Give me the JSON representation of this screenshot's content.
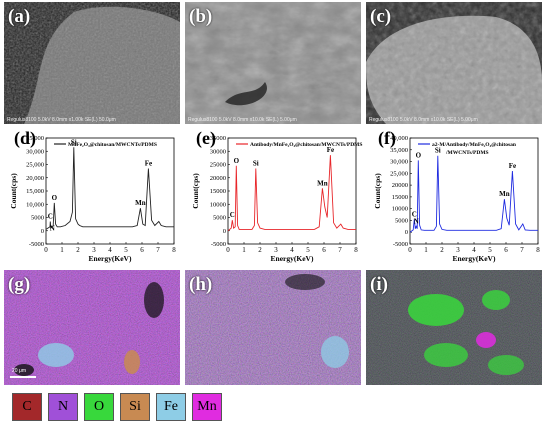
{
  "panels_top": [
    {
      "label": "(a)",
      "info": "Regulus8100 5.0kV 8.0mm x1.00k SE(L)  50.0μm"
    },
    {
      "label": "(b)",
      "info": "Regulus8100 5.0kV 8.0mm x10.0k SE(L)  5.00μm"
    },
    {
      "label": "(c)",
      "info": "Regulus8100 5.0kV 8.0mm x10.0k SE(L)  5.00μm"
    }
  ],
  "chart_data": [
    {
      "type": "line",
      "panel_label": "(d)",
      "legend": "MnFe₂O₄@chitosan/MWCNTs/PDMS",
      "legend_line2": "",
      "color": "#222222",
      "xlabel": "Energy(KeV)",
      "ylabel": "Count(cps)",
      "xlim": [
        0,
        8
      ],
      "ylim": [
        -5000,
        35000
      ],
      "xticks": [
        "0",
        "1",
        "2",
        "3",
        "4",
        "5",
        "6",
        "7",
        "8"
      ],
      "yticks": [
        "-5000",
        "0",
        "5000",
        "10,000",
        "15,000",
        "20,000",
        "25,000",
        "30,000",
        "35,000"
      ],
      "peaks": [
        {
          "name": "C",
          "x": 0.27,
          "y": 3500
        },
        {
          "name": "N",
          "x": 0.39,
          "y": -1000
        },
        {
          "name": "O",
          "x": 0.52,
          "y": 10500
        },
        {
          "name": "Si",
          "x": 1.74,
          "y": 31500
        },
        {
          "name": "Mn",
          "x": 5.9,
          "y": 8500
        },
        {
          "name": "Fe",
          "x": 6.4,
          "y": 23500
        }
      ],
      "series": [
        {
          "x": [
            0,
            0.25,
            0.27,
            0.3,
            0.39,
            0.45,
            0.52,
            0.6,
            0.7,
            0.9,
            1.2,
            1.5,
            1.65,
            1.74,
            1.85,
            2.0,
            2.1,
            2.3,
            2.6,
            3.0,
            3.5,
            4.0,
            4.5,
            5.0,
            5.4,
            5.7,
            5.9,
            6.05,
            6.2,
            6.4,
            6.6,
            6.8,
            7.05,
            7.2,
            7.5,
            8.0
          ],
          "y": [
            500,
            1500,
            3500,
            1000,
            1500,
            2000,
            10500,
            2500,
            1500,
            1500,
            2000,
            3500,
            7000,
            31500,
            4500,
            2500,
            2000,
            1500,
            1500,
            1500,
            1500,
            1500,
            1500,
            1500,
            1500,
            2000,
            8500,
            2500,
            2000,
            23500,
            4000,
            2000,
            3500,
            2000,
            1500,
            1500
          ]
        }
      ]
    },
    {
      "type": "line",
      "panel_label": "(e)",
      "legend": "Antibody/MnFe₂O₄@chitosan/MWCNTs/PDMS",
      "legend_line2": "",
      "color": "#e8262a",
      "xlabel": "Energy(KeV)",
      "ylabel": "Count(cps)",
      "xlim": [
        0,
        8
      ],
      "ylim": [
        -5000,
        35000
      ],
      "xticks": [
        "0",
        "1",
        "2",
        "3",
        "4",
        "5",
        "6",
        "7",
        "8"
      ],
      "yticks": [
        "-5000",
        "0",
        "5000",
        "10000",
        "15000",
        "20000",
        "25000",
        "30000",
        "35000"
      ],
      "peaks": [
        {
          "name": "C",
          "x": 0.27,
          "y": 4000
        },
        {
          "name": "O",
          "x": 0.52,
          "y": 24500
        },
        {
          "name": "Si",
          "x": 1.74,
          "y": 23500
        },
        {
          "name": "Mn",
          "x": 5.9,
          "y": 16000
        },
        {
          "name": "Fe",
          "x": 6.4,
          "y": 28500
        }
      ],
      "series": [
        {
          "x": [
            0,
            0.2,
            0.27,
            0.35,
            0.45,
            0.52,
            0.6,
            0.7,
            0.9,
            1.2,
            1.5,
            1.65,
            1.74,
            1.85,
            2.0,
            2.3,
            2.6,
            3.0,
            3.5,
            4.0,
            4.5,
            5.0,
            5.4,
            5.7,
            5.9,
            6.05,
            6.2,
            6.4,
            6.6,
            6.8,
            7.05,
            7.2,
            7.5,
            8.0
          ],
          "y": [
            0,
            1000,
            4000,
            1000,
            1500,
            24500,
            2000,
            500,
            500,
            500,
            500,
            2000,
            23500,
            3000,
            1000,
            500,
            500,
            500,
            500,
            500,
            500,
            500,
            500,
            1500,
            16000,
            9000,
            5000,
            28500,
            3000,
            1000,
            2500,
            1000,
            500,
            500
          ]
        }
      ]
    },
    {
      "type": "line",
      "panel_label": "(f)",
      "legend": "a2-M/Antibody/MnFe₂O₄@chitosan",
      "legend_line2": "/MWCNTs/PDMS",
      "color": "#1f2be0",
      "xlabel": "Energy(KeV)",
      "ylabel": "Count(cps)",
      "xlim": [
        0,
        8
      ],
      "ylim": [
        -5000,
        40000
      ],
      "xticks": [
        "0",
        "1",
        "2",
        "3",
        "4",
        "5",
        "6",
        "7",
        "8"
      ],
      "yticks": [
        "-5000",
        "0",
        "5000",
        "10000",
        "15000",
        "20000",
        "25,000",
        "30,000",
        "35,000",
        "40,000"
      ],
      "peaks": [
        {
          "name": "C",
          "x": 0.27,
          "y": 5500
        },
        {
          "name": "N",
          "x": 0.39,
          "y": 2500
        },
        {
          "name": "O",
          "x": 0.52,
          "y": 30500
        },
        {
          "name": "Si",
          "x": 1.74,
          "y": 32500
        },
        {
          "name": "Mn",
          "x": 5.9,
          "y": 14000
        },
        {
          "name": "Fe",
          "x": 6.4,
          "y": 26000
        }
      ],
      "series": [
        {
          "x": [
            0,
            0.2,
            0.27,
            0.33,
            0.39,
            0.45,
            0.52,
            0.6,
            0.7,
            0.9,
            1.2,
            1.5,
            1.65,
            1.74,
            1.85,
            2.0,
            2.3,
            2.6,
            3.0,
            3.5,
            4.0,
            4.5,
            5.0,
            5.4,
            5.7,
            5.9,
            6.05,
            6.2,
            6.4,
            6.6,
            6.8,
            7.05,
            7.2,
            7.5,
            8.0
          ],
          "y": [
            0,
            1000,
            5500,
            1500,
            2500,
            1500,
            30500,
            3000,
            1000,
            800,
            800,
            800,
            2500,
            32500,
            3500,
            1200,
            800,
            800,
            800,
            800,
            800,
            800,
            800,
            800,
            1500,
            14000,
            6000,
            3000,
            26000,
            3500,
            1000,
            3500,
            1000,
            800,
            800
          ]
        }
      ]
    }
  ],
  "maps": [
    {
      "label": "(g)",
      "scale_bar": "20 μm"
    },
    {
      "label": "(h)",
      "scale_bar": ""
    },
    {
      "label": "(i)",
      "scale_bar": ""
    }
  ],
  "legend": [
    {
      "symbol": "C",
      "color": "#a3282a"
    },
    {
      "symbol": "N",
      "color": "#a050d8"
    },
    {
      "symbol": "O",
      "color": "#38d83c"
    },
    {
      "symbol": "Si",
      "color": "#c88a52"
    },
    {
      "symbol": "Fe",
      "color": "#8ecde6"
    },
    {
      "symbol": "Mn",
      "color": "#e02ce0"
    }
  ]
}
